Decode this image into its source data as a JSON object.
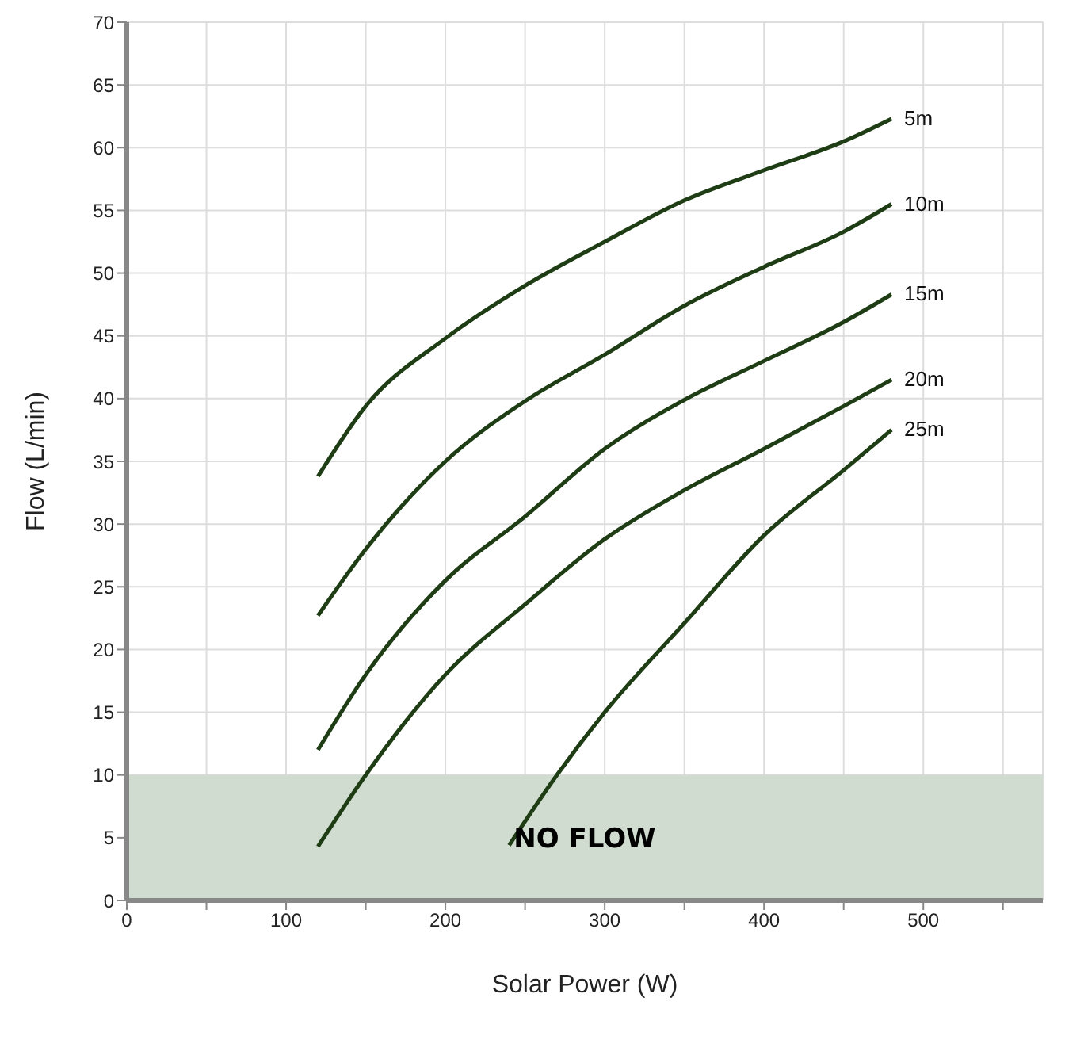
{
  "chart_data": {
    "type": "line",
    "xlabel": "Solar Power (W)",
    "ylabel": "Flow (L/min)",
    "xlim": [
      0,
      575
    ],
    "xticks": [
      0,
      {
        "value": 50,
        "label": null
      },
      100,
      {
        "value": 150,
        "label": null
      },
      200,
      {
        "value": 250,
        "label": null
      },
      300,
      {
        "value": 350,
        "label": null
      },
      400,
      {
        "value": 450,
        "label": null
      },
      500,
      {
        "value": 550,
        "label": null
      }
    ],
    "ylim": [
      0,
      70
    ],
    "yticks": [
      0,
      5,
      10,
      15,
      20,
      25,
      30,
      35,
      40,
      45,
      50,
      55,
      60,
      65,
      70
    ],
    "grid": true,
    "legend": false,
    "marker": "none",
    "line_style": "solid",
    "bands": [
      {
        "axis": "y",
        "from": 0,
        "to": 10,
        "label": "NO FLOW",
        "color": "#cfdccf"
      }
    ],
    "series": [
      {
        "name": "5m",
        "color": "#1e3d14",
        "x": [
          120,
          150,
          200,
          250,
          300,
          350,
          400,
          450,
          480
        ],
        "values": [
          33.8,
          39.4,
          44.8,
          49,
          52.5,
          55.8,
          58.2,
          60.5,
          62.3
        ]
      },
      {
        "name": "10m",
        "color": "#1e3d14",
        "x": [
          120,
          150,
          200,
          250,
          300,
          350,
          400,
          450,
          480
        ],
        "values": [
          22.7,
          28,
          35,
          39.8,
          43.5,
          47.4,
          50.5,
          53.3,
          55.5
        ]
      },
      {
        "name": "15m",
        "color": "#1e3d14",
        "x": [
          120,
          150,
          200,
          250,
          300,
          350,
          400,
          450,
          480
        ],
        "values": [
          12,
          18,
          25.5,
          30.6,
          36,
          39.9,
          43,
          46.1,
          48.3
        ]
      },
      {
        "name": "20m",
        "color": "#1e3d14",
        "x": [
          120,
          150,
          200,
          250,
          300,
          350,
          400,
          450,
          480
        ],
        "values": [
          4.3,
          10,
          18,
          23.6,
          28.8,
          32.7,
          36,
          39.4,
          41.5
        ]
      },
      {
        "name": "25m",
        "color": "#1e3d14",
        "x": [
          240,
          270,
          300,
          350,
          400,
          450,
          480
        ],
        "values": [
          4.4,
          10,
          15,
          22.1,
          29.1,
          34.3,
          37.5
        ]
      }
    ]
  }
}
